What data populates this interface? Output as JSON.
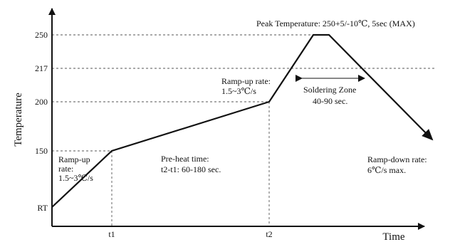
{
  "chart_data": {
    "type": "line",
    "title": "",
    "xlabel": "Time",
    "ylabel": "Temperature",
    "grid": false,
    "legend": "none",
    "y_ticks": [
      "250",
      "217",
      "200",
      "150",
      "RT"
    ],
    "x_ticks": [
      "t1",
      "t2"
    ],
    "series": [
      {
        "points": [
          {
            "x": "start",
            "y": "RT"
          },
          {
            "x": "t1",
            "y": 150
          },
          {
            "x": "t2",
            "y": 200
          },
          {
            "x": "peak start",
            "y": 250
          },
          {
            "x": "peak end",
            "y": 250
          },
          {
            "x": "end",
            "y": "below 150"
          }
        ]
      }
    ],
    "annotations": {
      "peak": "Peak Temperature: 250+5/-10℃, 5sec (MAX)",
      "ramp_up_1": [
        "Ramp-up",
        "rate:",
        "1.5~3℃/s"
      ],
      "preheat": [
        "Pre-heat time:",
        "t2-t1: 60-180 sec."
      ],
      "ramp_up_2": [
        "Ramp-up rate:",
        "1.5~3℃/s"
      ],
      "soldering": [
        "Soldering Zone",
        "40-90 sec."
      ],
      "ramp_down": [
        "Ramp-down rate:",
        "6℃/s max."
      ]
    }
  },
  "colors": {
    "line": "#111111",
    "guide": "#555555",
    "background": "#ffffff"
  }
}
